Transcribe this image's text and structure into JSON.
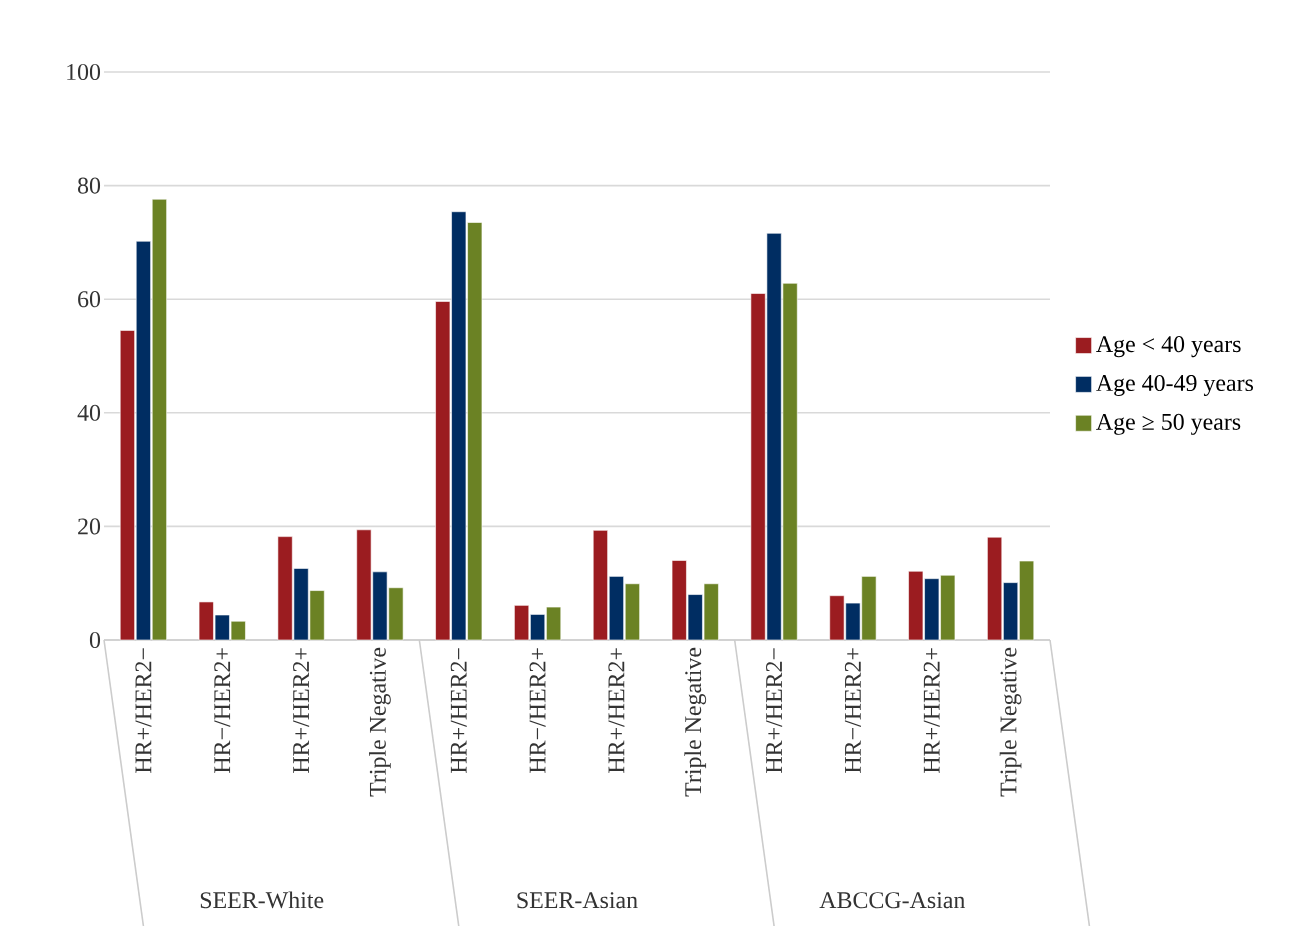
{
  "chart_data": {
    "type": "bar",
    "categories": [
      "HR+/HER2−",
      "HR−/HER2+",
      "HR+/HER2+",
      "Triple Negative",
      "HR+/HER2−",
      "HR−/HER2+",
      "HR+/HER2+",
      "Triple Negative",
      "HR+/HER2−",
      "HR−/HER2+",
      "HR+/HER2+",
      "Triple Negative"
    ],
    "series": [
      {
        "name": "Age < 40 years",
        "color": "#9b1c20",
        "values": [
          54.5,
          6.7,
          18.2,
          19.4,
          59.6,
          6.1,
          19.3,
          14,
          61,
          7.8,
          12.1,
          18.1
        ]
      },
      {
        "name": "Age 40-49 years",
        "color": "#002d62",
        "values": [
          70.2,
          4.4,
          12.6,
          12,
          75.4,
          4.5,
          11.2,
          8,
          71.6,
          6.5,
          10.8,
          10.1
        ]
      },
      {
        "name": "Age ≥ 50 years",
        "color": "#6b8224",
        "values": [
          77.6,
          3.3,
          8.7,
          9.2,
          73.5,
          5.8,
          9.9,
          9.9,
          62.8,
          11.2,
          11.4,
          13.9
        ]
      }
    ],
    "annotations": [
      "SEER-White",
      "SEER-Asian",
      "ABCCG-Asian"
    ],
    "ylim": [
      0,
      100
    ],
    "yticks": [
      0,
      20,
      40,
      60,
      80,
      100
    ],
    "grid": "y",
    "legend": "right"
  }
}
